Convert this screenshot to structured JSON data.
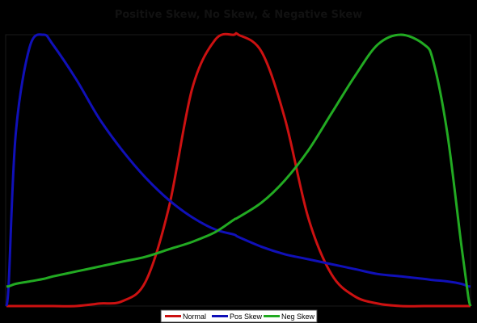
{
  "chart_data": {
    "type": "line",
    "title": "Positive Skew, No Skew, & Negative Skew",
    "xlabel": "",
    "ylabel": "",
    "xlim": [
      0,
      1
    ],
    "ylim": [
      0,
      1.1
    ],
    "grid": false,
    "legend_position": "bottom",
    "x": [
      0,
      0.005,
      0.02,
      0.05,
      0.08,
      0.1,
      0.15,
      0.2,
      0.25,
      0.3,
      0.35,
      0.4,
      0.45,
      0.49,
      0.5,
      0.55,
      0.6,
      0.65,
      0.7,
      0.75,
      0.8,
      0.85,
      0.9,
      0.92,
      0.95,
      0.98,
      0.995,
      1
    ],
    "series": [
      {
        "name": "Normal",
        "color": "#cc1111",
        "values": [
          0,
          0,
          0,
          0,
          0,
          0,
          0,
          0.01,
          0.02,
          0.1,
          0.4,
          0.88,
          1.08,
          1.1,
          1.1,
          1.03,
          0.76,
          0.36,
          0.13,
          0.04,
          0.01,
          0,
          0,
          0,
          0,
          0,
          0,
          0
        ]
      },
      {
        "name": "Pos Skew",
        "color": "#1010b8",
        "values": [
          0,
          0.1,
          0.7,
          1.05,
          1.1,
          1.06,
          0.92,
          0.76,
          0.63,
          0.52,
          0.43,
          0.36,
          0.31,
          0.29,
          0.28,
          0.24,
          0.21,
          0.19,
          0.17,
          0.15,
          0.13,
          0.12,
          0.11,
          0.105,
          0.1,
          0.09,
          0.08,
          0.08
        ]
      },
      {
        "name": "Neg Skew",
        "color": "#22aa22",
        "values": [
          0.08,
          0.08,
          0.09,
          0.1,
          0.11,
          0.12,
          0.14,
          0.16,
          0.18,
          0.2,
          0.23,
          0.26,
          0.3,
          0.35,
          0.36,
          0.42,
          0.51,
          0.63,
          0.78,
          0.93,
          1.06,
          1.1,
          1.06,
          0.99,
          0.7,
          0.25,
          0.04,
          0
        ]
      }
    ]
  }
}
